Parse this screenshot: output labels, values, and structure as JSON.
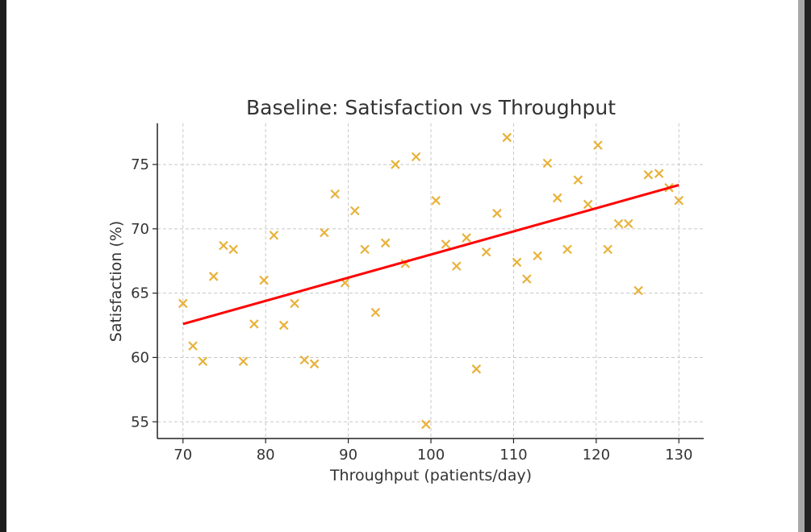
{
  "chart_data": {
    "type": "scatter",
    "title": "Baseline: Satisfaction vs Throughput",
    "xlabel": "Throughput (patients/day)",
    "ylabel": "Satisfaction (%)",
    "xlim": [
      66.9,
      133.0
    ],
    "ylim": [
      53.7,
      78.2
    ],
    "xticks": [
      70,
      80,
      90,
      100,
      110,
      120,
      130
    ],
    "yticks": [
      55,
      60,
      65,
      70,
      75
    ],
    "grid": true,
    "colors": {
      "points": "#e8b23a",
      "fit": "#ff0000"
    },
    "series": [
      {
        "name": "data",
        "marker": "x",
        "x": [
          70.0,
          71.2,
          72.4,
          73.7,
          74.9,
          76.1,
          77.3,
          78.6,
          79.8,
          81.0,
          82.2,
          83.5,
          84.7,
          85.9,
          87.1,
          88.4,
          89.6,
          90.8,
          92.0,
          93.3,
          94.5,
          95.7,
          96.9,
          98.2,
          99.4,
          100.6,
          101.8,
          103.1,
          104.3,
          105.5,
          106.7,
          108.0,
          109.2,
          110.4,
          111.6,
          112.9,
          114.1,
          115.3,
          116.5,
          117.8,
          119.0,
          120.2,
          121.4,
          122.7,
          123.9,
          125.1,
          126.3,
          127.6,
          128.8,
          130.0
        ],
        "y": [
          64.2,
          60.9,
          59.7,
          66.3,
          68.7,
          68.4,
          59.7,
          62.6,
          66.0,
          69.5,
          62.5,
          64.2,
          59.8,
          59.5,
          69.7,
          72.7,
          65.8,
          71.4,
          68.4,
          63.5,
          68.9,
          75.0,
          67.3,
          75.6,
          54.8,
          72.2,
          68.8,
          67.1,
          69.3,
          59.1,
          68.2,
          71.2,
          77.1,
          67.4,
          66.1,
          67.9,
          75.1,
          72.4,
          68.4,
          73.8,
          71.9,
          76.5,
          68.4,
          70.4,
          70.4,
          65.2,
          74.2,
          74.3,
          73.2,
          72.2
        ]
      },
      {
        "name": "fit",
        "type": "line",
        "x": [
          70,
          130
        ],
        "y": [
          62.6,
          73.4
        ]
      }
    ]
  }
}
